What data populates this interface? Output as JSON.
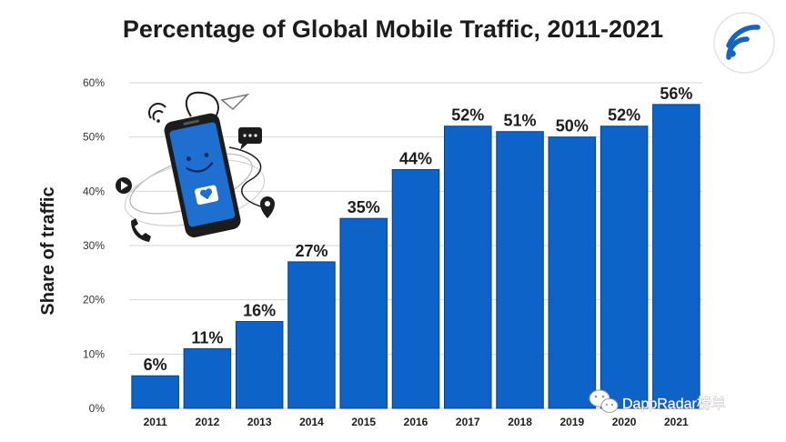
{
  "chart_data": {
    "type": "bar",
    "title": "Percentage of Global Mobile Traffic, 2011-2021",
    "xlabel": "",
    "ylabel": "Share of traffic",
    "categories": [
      "2011",
      "2012",
      "2013",
      "2014",
      "2015",
      "2016",
      "2017",
      "2018",
      "2019",
      "2020",
      "2021"
    ],
    "values": [
      6,
      11,
      16,
      27,
      35,
      44,
      52,
      51,
      50,
      52,
      56
    ],
    "data_labels": [
      "6%",
      "11%",
      "16%",
      "27%",
      "35%",
      "44%",
      "52%",
      "51%",
      "50%",
      "52%",
      "56%"
    ],
    "ylim": [
      0,
      60
    ],
    "yticks": [
      0,
      10,
      20,
      30,
      40,
      50,
      60
    ],
    "ytick_labels": [
      "0%",
      "10%",
      "20%",
      "30%",
      "40%",
      "50%",
      "60%"
    ],
    "grid": true,
    "legend": "none",
    "colors": {
      "bar": "#0d63c8",
      "bar_edge": "#0a3f8a",
      "grid": "#d6d6d6",
      "text": "#1c1c1c"
    }
  },
  "logo": {
    "icon": "wifi-signal-icon",
    "color": "#1565c0"
  },
  "illustration": {
    "icon": "smartphone-illustration-icon"
  },
  "watermark": {
    "text": "DappRadar榜单",
    "icon": "wechat-icon"
  }
}
